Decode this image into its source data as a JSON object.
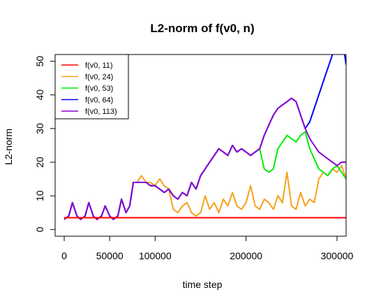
{
  "chart_data": {
    "type": "line",
    "title": "L2-norm of f(v0, n)",
    "xlabel": "time step",
    "ylabel": "L2-norm",
    "xlim": [
      -10000,
      310000
    ],
    "ylim": [
      -2,
      52
    ],
    "xticks": [
      {
        "value": 0,
        "label": "0"
      },
      {
        "value": 50000,
        "label": "50000"
      },
      {
        "value": 100000,
        "label": "100000"
      },
      {
        "value": 200000,
        "label": "200000"
      },
      {
        "value": 300000,
        "label": "300000"
      }
    ],
    "yticks": [
      {
        "value": 0,
        "label": "0"
      },
      {
        "value": 10,
        "label": "10"
      },
      {
        "value": 20,
        "label": "20"
      },
      {
        "value": 30,
        "label": "30"
      },
      {
        "value": 40,
        "label": "40"
      },
      {
        "value": 50,
        "label": "50"
      }
    ],
    "grid": false,
    "legend_position": "top-left",
    "series": [
      {
        "name": "f(v0, 11)",
        "color": "#ff0000",
        "x": [
          0,
          310000
        ],
        "y": [
          3.5,
          3.5
        ]
      },
      {
        "name": "f(v0, 24)",
        "color": "#f7a11a",
        "x": [
          0,
          5000,
          9000,
          14000,
          18000,
          23000,
          27000,
          32000,
          36000,
          41000,
          45000,
          50000,
          54000,
          59000,
          63000,
          68000,
          72000,
          76000,
          80000,
          85000,
          90000,
          95000,
          100000,
          105000,
          110000,
          115000,
          120000,
          125000,
          130000,
          135000,
          140000,
          145000,
          150000,
          155000,
          160000,
          165000,
          170000,
          175000,
          180000,
          185000,
          190000,
          195000,
          200000,
          205000,
          210000,
          215000,
          220000,
          225000,
          230000,
          235000,
          240000,
          245000,
          250000,
          255000,
          260000,
          265000,
          270000,
          275000,
          280000,
          285000,
          290000,
          295000,
          300000,
          305000,
          310000
        ],
        "y": [
          3,
          4,
          8,
          4,
          3,
          4,
          8,
          4,
          3,
          4,
          7,
          4,
          3,
          4,
          9,
          5,
          7,
          14,
          14,
          16,
          14,
          14,
          13,
          15,
          13,
          12,
          6,
          5,
          7,
          8,
          5,
          4,
          5,
          10,
          6,
          8,
          5,
          9,
          7,
          11,
          7,
          6,
          8,
          13,
          7,
          6,
          9,
          8,
          6,
          10,
          8,
          17,
          7,
          6,
          11,
          7,
          9,
          8,
          15,
          17,
          16,
          18,
          17,
          19,
          15
        ]
      },
      {
        "name": "f(v0, 53)",
        "color": "#00ee00",
        "x": [
          0,
          5000,
          9000,
          14000,
          18000,
          23000,
          27000,
          32000,
          36000,
          41000,
          45000,
          50000,
          54000,
          59000,
          63000,
          68000,
          72000,
          76000,
          80000,
          85000,
          90000,
          95000,
          100000,
          105000,
          110000,
          115000,
          120000,
          125000,
          130000,
          135000,
          140000,
          145000,
          150000,
          155000,
          160000,
          165000,
          170000,
          175000,
          180000,
          185000,
          190000,
          195000,
          200000,
          205000,
          210000,
          215000,
          220000,
          225000,
          230000,
          235000,
          240000,
          245000,
          250000,
          255000,
          260000,
          265000,
          270000,
          275000,
          280000,
          285000,
          290000,
          295000,
          300000,
          305000,
          310000
        ],
        "y": [
          3,
          4,
          8,
          4,
          3,
          4,
          8,
          4,
          3,
          4,
          7,
          4,
          3,
          4,
          9,
          5,
          7,
          14,
          14,
          14,
          14,
          13,
          13,
          12,
          11,
          12,
          10,
          9,
          11,
          10,
          14,
          12,
          16,
          18,
          20,
          22,
          24,
          23,
          22,
          25,
          23,
          24,
          23,
          22,
          23,
          24,
          18,
          17,
          18,
          24,
          26,
          28,
          27,
          26,
          28,
          29,
          24,
          21,
          18,
          17,
          16,
          18,
          19,
          17,
          15
        ]
      },
      {
        "name": "f(v0, 64)",
        "color": "#0000ff",
        "x": [
          0,
          5000,
          9000,
          14000,
          18000,
          23000,
          27000,
          32000,
          36000,
          41000,
          45000,
          50000,
          54000,
          59000,
          63000,
          68000,
          72000,
          76000,
          80000,
          85000,
          90000,
          95000,
          100000,
          105000,
          110000,
          115000,
          120000,
          125000,
          130000,
          135000,
          140000,
          145000,
          150000,
          155000,
          160000,
          165000,
          170000,
          175000,
          180000,
          185000,
          190000,
          195000,
          200000,
          205000,
          210000,
          215000,
          220000,
          225000,
          230000,
          235000,
          240000,
          245000,
          250000,
          255000,
          260000,
          265000,
          270000,
          275000,
          280000,
          285000,
          290000,
          295000,
          300000,
          305000,
          310000
        ],
        "y": [
          3,
          4,
          8,
          4,
          3,
          4,
          8,
          4,
          3,
          4,
          7,
          4,
          3,
          4,
          9,
          5,
          7,
          14,
          14,
          14,
          14,
          13,
          13,
          12,
          11,
          12,
          10,
          9,
          11,
          10,
          14,
          12,
          16,
          18,
          20,
          22,
          24,
          23,
          22,
          25,
          23,
          24,
          23,
          22,
          23,
          24,
          28,
          31,
          34,
          36,
          37,
          38,
          39,
          38,
          34,
          30,
          32,
          36,
          40,
          44,
          48,
          52,
          55,
          58,
          49
        ]
      },
      {
        "name": "f(v0, 113)",
        "color": "#8b00d4",
        "x": [
          0,
          5000,
          9000,
          14000,
          18000,
          23000,
          27000,
          32000,
          36000,
          41000,
          45000,
          50000,
          54000,
          59000,
          63000,
          68000,
          72000,
          76000,
          80000,
          85000,
          90000,
          95000,
          100000,
          105000,
          110000,
          115000,
          120000,
          125000,
          130000,
          135000,
          140000,
          145000,
          150000,
          155000,
          160000,
          165000,
          170000,
          175000,
          180000,
          185000,
          190000,
          195000,
          200000,
          205000,
          210000,
          215000,
          220000,
          225000,
          230000,
          235000,
          240000,
          245000,
          250000,
          255000,
          260000,
          265000,
          270000,
          275000,
          280000,
          285000,
          290000,
          295000,
          300000,
          305000,
          310000
        ],
        "y": [
          3,
          4,
          8,
          4,
          3,
          4,
          8,
          4,
          3,
          4,
          7,
          4,
          3,
          4,
          9,
          5,
          7,
          14,
          14,
          14,
          14,
          13,
          13,
          12,
          11,
          12,
          10,
          9,
          11,
          10,
          14,
          12,
          16,
          18,
          20,
          22,
          24,
          23,
          22,
          25,
          23,
          24,
          23,
          22,
          23,
          24,
          28,
          31,
          34,
          36,
          37,
          38,
          39,
          38,
          34,
          30,
          27,
          25,
          23,
          22,
          21,
          20,
          19,
          20,
          20
        ]
      }
    ]
  }
}
